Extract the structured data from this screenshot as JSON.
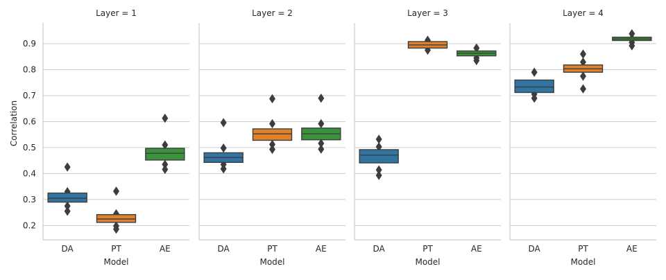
{
  "chart_data": {
    "type": "boxen",
    "ylabel": "Correlation",
    "xlabel": "Model",
    "ylim": [
      0.145,
      0.98
    ],
    "yticks": [
      0.2,
      0.3,
      0.4,
      0.5,
      0.6,
      0.7,
      0.8,
      0.9
    ],
    "ytick_labels": [
      "0.2",
      "0.3",
      "0.4",
      "0.5",
      "0.6",
      "0.7",
      "0.8",
      "0.9"
    ],
    "grid": true,
    "categories": [
      "DA",
      "PT",
      "AE"
    ],
    "colors": {
      "DA": "#3274a1",
      "PT": "#e1812c",
      "AE": "#3a923a"
    },
    "panels": [
      {
        "title": "Layer = 1",
        "boxes": [
          {
            "category": "DA",
            "q1": 0.29,
            "median": 0.305,
            "q3": 0.325,
            "outliers": [
              0.425,
              0.33,
              0.275,
              0.255
            ]
          },
          {
            "category": "PT",
            "q1": 0.212,
            "median": 0.225,
            "q3": 0.242,
            "outliers": [
              0.332,
              0.245,
              0.198,
              0.186
            ]
          },
          {
            "category": "AE",
            "q1": 0.452,
            "median": 0.478,
            "q3": 0.497,
            "outliers": [
              0.613,
              0.51,
              0.435,
              0.416
            ]
          }
        ]
      },
      {
        "title": "Layer = 2",
        "boxes": [
          {
            "category": "DA",
            "q1": 0.443,
            "median": 0.462,
            "q3": 0.48,
            "outliers": [
              0.596,
              0.498,
              0.435,
              0.418
            ]
          },
          {
            "category": "PT",
            "q1": 0.528,
            "median": 0.553,
            "q3": 0.572,
            "outliers": [
              0.688,
              0.592,
              0.512,
              0.493
            ]
          },
          {
            "category": "AE",
            "q1": 0.53,
            "median": 0.553,
            "q3": 0.575,
            "outliers": [
              0.69,
              0.592,
              0.516,
              0.494
            ]
          }
        ]
      },
      {
        "title": "Layer = 3",
        "boxes": [
          {
            "category": "DA",
            "q1": 0.441,
            "median": 0.471,
            "q3": 0.492,
            "outliers": [
              0.532,
              0.503,
              0.414,
              0.393
            ]
          },
          {
            "category": "PT",
            "q1": 0.883,
            "median": 0.895,
            "q3": 0.908,
            "outliers": [
              0.913,
              0.875
            ]
          },
          {
            "category": "AE",
            "q1": 0.853,
            "median": 0.863,
            "q3": 0.872,
            "outliers": [
              0.883,
              0.845,
              0.835
            ]
          }
        ]
      },
      {
        "title": "Layer = 4",
        "boxes": [
          {
            "category": "DA",
            "q1": 0.712,
            "median": 0.733,
            "q3": 0.76,
            "outliers": [
              0.79,
              0.706,
              0.69
            ]
          },
          {
            "category": "PT",
            "q1": 0.79,
            "median": 0.803,
            "q3": 0.818,
            "outliers": [
              0.86,
              0.829,
              0.775,
              0.726
            ]
          },
          {
            "category": "AE",
            "q1": 0.912,
            "median": 0.918,
            "q3": 0.925,
            "outliers": [
              0.938,
              0.92,
              0.905,
              0.892
            ]
          }
        ]
      }
    ]
  }
}
